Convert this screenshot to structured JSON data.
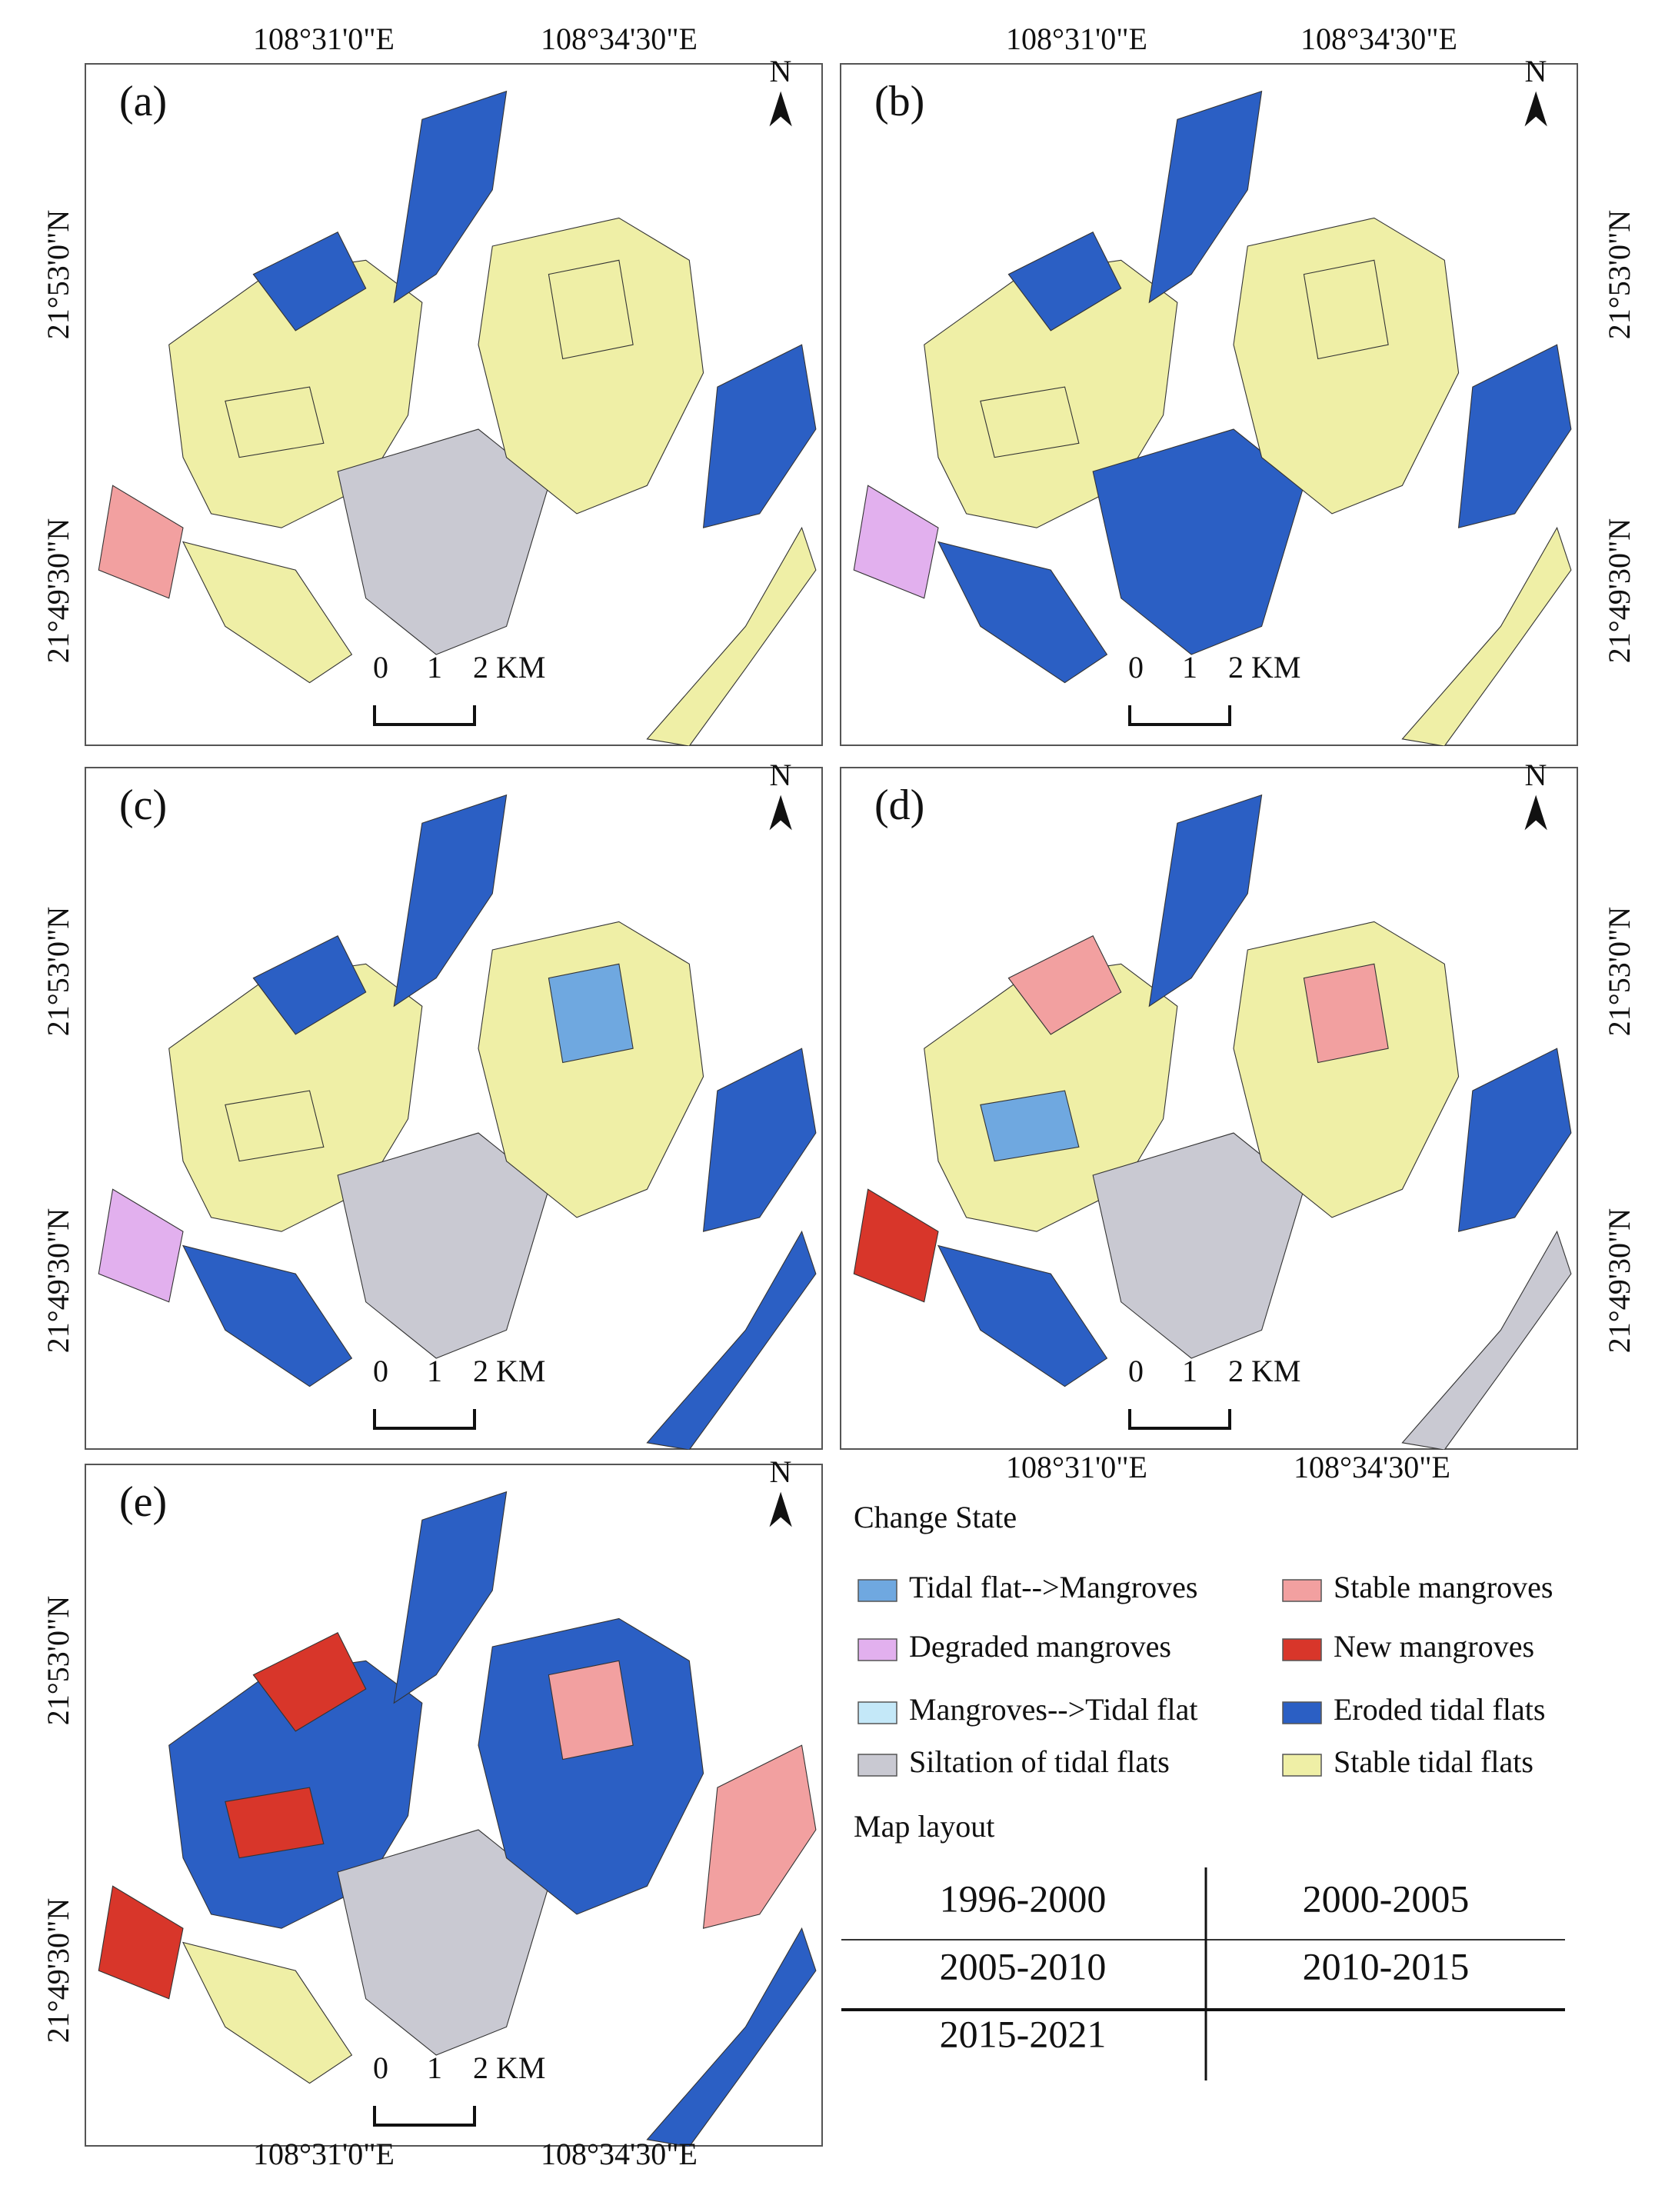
{
  "axes": {
    "lon": [
      "108°31'0\"E",
      "108°34'30\"E"
    ],
    "lat": [
      "21°53'0\"N",
      "21°49'30\"N"
    ]
  },
  "north": "N",
  "scale_bar": [
    "0",
    "1",
    "2 KM"
  ],
  "panels": [
    "(a)",
    "(b)",
    "(c)",
    "(d)",
    "(e)"
  ],
  "legend": {
    "title": "Change State",
    "items": [
      {
        "name": "Tidal flat-->Mangroves",
        "color": "#6fa8e0"
      },
      {
        "name": "Stable mangroves",
        "color": "#f2a0a0"
      },
      {
        "name": "Degraded mangroves",
        "color": "#e2b0ee"
      },
      {
        "name": "New mangroves",
        "color": "#d8362a"
      },
      {
        "name": "Mangroves-->Tidal flat",
        "color": "#c4e8f8"
      },
      {
        "name": "Eroded tidal flats",
        "color": "#2b5fc4"
      },
      {
        "name": "Siltation of tidal flats",
        "color": "#c9c9d2"
      },
      {
        "name": "Stable tidal flats",
        "color": "#efefa6"
      }
    ]
  },
  "map_layout": {
    "title": "Map layout",
    "rows": [
      [
        "1996-2000",
        "2000-2005"
      ],
      [
        "2005-2010",
        "2010-2015"
      ],
      [
        "2015-2021"
      ]
    ]
  }
}
